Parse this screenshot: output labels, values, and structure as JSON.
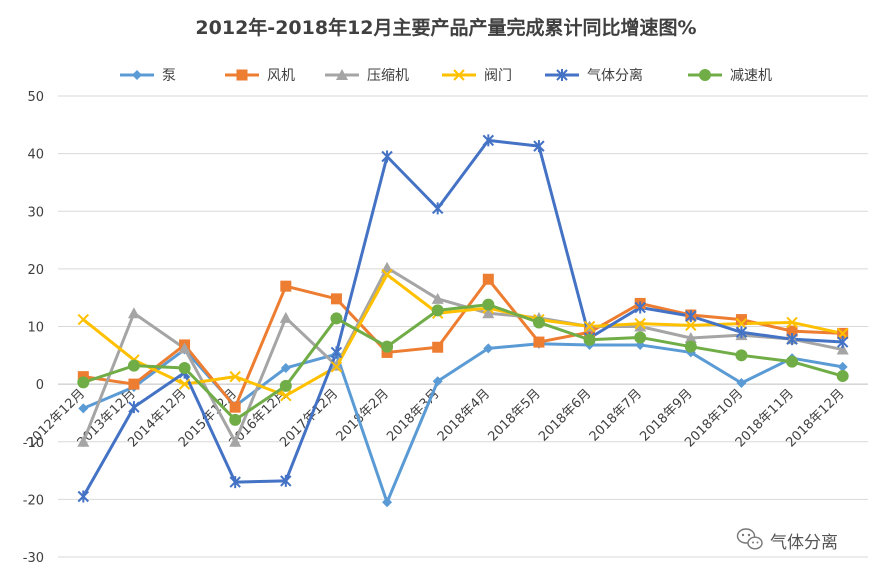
{
  "chart_data": {
    "type": "line",
    "title": "2012年-2018年12月主要产品产量完成累计同比增速图%",
    "xlabel": "",
    "ylabel": "",
    "ylim": [
      -30,
      50
    ],
    "yticks": [
      -30,
      -20,
      -10,
      0,
      10,
      20,
      30,
      40,
      50
    ],
    "grid": true,
    "legend_position": "top",
    "categories": [
      "2012年12月",
      "2013年12月",
      "2014年12月",
      "2015年12月",
      "2016年12月",
      "2017年12月",
      "2018年2月",
      "2018年3月",
      "2018年4月",
      "2018年5月",
      "2018年6月",
      "2018年7月",
      "2018年9月",
      "2018年10月",
      "2018年11月",
      "2018年12月"
    ],
    "series": [
      {
        "name": "泵",
        "color": "#5B9BD5",
        "marker": "diamond",
        "values": [
          -4.2,
          -0.5,
          6.0,
          -3.8,
          2.8,
          5.2,
          -20.5,
          0.5,
          6.2,
          7.0,
          6.8,
          6.8,
          5.5,
          0.2,
          4.5,
          3.0
        ]
      },
      {
        "name": "风机",
        "color": "#ED7D31",
        "marker": "square",
        "values": [
          1.3,
          0.0,
          6.8,
          -4.0,
          17.0,
          14.8,
          5.5,
          6.4,
          18.2,
          7.3,
          9.0,
          14.0,
          12.0,
          11.2,
          9.2,
          8.8
        ]
      },
      {
        "name": "压缩机",
        "color": "#A5A5A5",
        "marker": "triangle",
        "values": [
          -10.0,
          12.3,
          6.2,
          -10.0,
          11.5,
          3.2,
          20.2,
          14.8,
          12.3,
          11.5,
          10.0,
          10.0,
          8.0,
          8.5,
          7.8,
          6.0
        ]
      },
      {
        "name": "阀门",
        "color": "#FFC000",
        "marker": "x",
        "values": [
          11.2,
          4.2,
          0.0,
          1.3,
          -2.0,
          3.0,
          19.0,
          12.3,
          13.2,
          11.2,
          10.0,
          10.5,
          10.2,
          10.5,
          10.7,
          8.8
        ]
      },
      {
        "name": "气体分离",
        "color": "#4472C4",
        "marker": "star",
        "values": [
          -19.5,
          -4.0,
          2.0,
          -17.0,
          -16.8,
          5.5,
          39.5,
          30.5,
          42.3,
          41.3,
          8.0,
          13.3,
          11.8,
          9.0,
          7.8,
          7.3
        ]
      },
      {
        "name": "减速机",
        "color": "#70AD47",
        "marker": "circle",
        "values": [
          0.3,
          3.2,
          2.8,
          -6.2,
          -0.3,
          11.4,
          6.5,
          12.8,
          13.8,
          10.7,
          7.7,
          8.1,
          6.5,
          5.0,
          3.9,
          1.4
        ]
      }
    ]
  },
  "watermark": {
    "text": "气体分离",
    "icon": "wechat-icon"
  }
}
